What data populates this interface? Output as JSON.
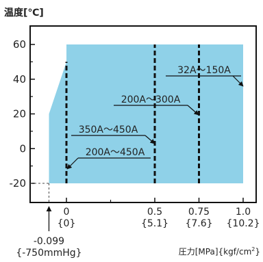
{
  "chart_data": {
    "type": "area",
    "title": "温度[℃]",
    "xlabel_main": "圧力[MPa]{kgf/cm",
    "xlabel_sup": "2",
    "xlabel_end": "}",
    "xlim": [
      -0.099,
      1.0
    ],
    "ylim": [
      -20,
      60
    ],
    "yticks": [
      60,
      40,
      20,
      0,
      -20
    ],
    "xticks": [
      {
        "value": 0,
        "label": "0",
        "sub": "{0}"
      },
      {
        "value": 0.5,
        "label": "0.5",
        "sub": "{5.1}"
      },
      {
        "value": 0.75,
        "label": "0.75",
        "sub": "{7.6}"
      },
      {
        "value": 1.0,
        "label": "1.0",
        "sub": "{10.2}"
      }
    ],
    "x_min_annotation": {
      "value": -0.099,
      "label": "-0.099",
      "sub": "{-750mmHg}"
    },
    "operating_region": {
      "color": "#8fd1e8",
      "polygon": [
        [
          -0.099,
          -20
        ],
        [
          1.0,
          -20
        ],
        [
          1.0,
          60
        ],
        [
          0,
          60
        ],
        [
          0,
          50
        ],
        [
          -0.099,
          20
        ]
      ]
    },
    "pressure_limits": [
      {
        "size": "200A～450A",
        "x": 0,
        "y_range": [
          -20,
          50
        ]
      },
      {
        "size": "350A～450A",
        "x": 0.5,
        "y_range": [
          -20,
          60
        ]
      },
      {
        "size": "200A～300A",
        "x": 0.75,
        "y_range": [
          -20,
          60
        ]
      },
      {
        "size": "32A～150A",
        "x": 1.0,
        "y_range": [
          -20,
          60
        ]
      }
    ],
    "grid": false,
    "legend": "none"
  }
}
